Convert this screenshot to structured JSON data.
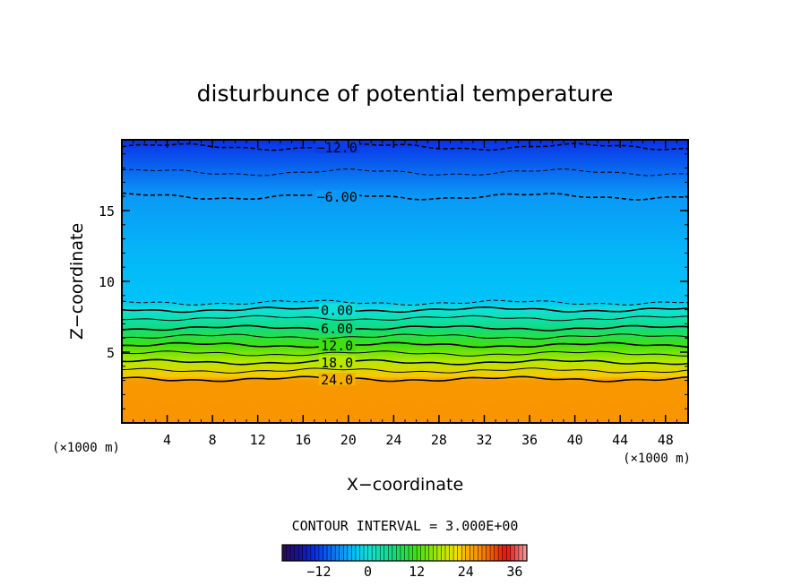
{
  "chart_data": {
    "type": "heatmap",
    "title": "disturbunce of potential temperature",
    "xlabel": "X−coordinate",
    "ylabel": "Z−coordinate",
    "x_unit_left": "(×1000 m)",
    "x_unit_right": "(×1000 m)",
    "xlim": [
      0,
      50
    ],
    "ylim": [
      0,
      20
    ],
    "x_ticks": [
      4,
      8,
      12,
      16,
      20,
      24,
      28,
      32,
      36,
      40,
      44,
      48
    ],
    "y_ticks": [
      5,
      10,
      15
    ],
    "contour_interval_text": "CONTOUR INTERVAL = 3.000E+00",
    "contour_interval": 3,
    "contours": [
      {
        "level": -12,
        "label": "−12.0",
        "z": 19.5,
        "dashed": true,
        "labeled": true
      },
      {
        "level": -9,
        "label": "",
        "z": 17.7,
        "dashed": true,
        "labeled": false
      },
      {
        "level": -6,
        "label": "−6.00",
        "z": 16.0,
        "dashed": true,
        "labeled": true
      },
      {
        "level": -3,
        "label": "",
        "z": 8.5,
        "dashed": true,
        "labeled": false
      },
      {
        "level": 0,
        "label": "0.00",
        "z": 8.0,
        "dashed": false,
        "labeled": true
      },
      {
        "level": 3,
        "label": "",
        "z": 7.4,
        "dashed": false,
        "labeled": false
      },
      {
        "level": 6,
        "label": "6.00",
        "z": 6.7,
        "dashed": false,
        "labeled": true
      },
      {
        "level": 9,
        "label": "",
        "z": 6.1,
        "dashed": false,
        "labeled": false
      },
      {
        "level": 12,
        "label": "12.0",
        "z": 5.5,
        "dashed": false,
        "labeled": true
      },
      {
        "level": 15,
        "label": "",
        "z": 4.9,
        "dashed": false,
        "labeled": false
      },
      {
        "level": 18,
        "label": "18.0",
        "z": 4.3,
        "dashed": false,
        "labeled": true
      },
      {
        "level": 21,
        "label": "",
        "z": 3.7,
        "dashed": false,
        "labeled": false
      },
      {
        "level": 24,
        "label": "24.0",
        "z": 3.1,
        "dashed": false,
        "labeled": true
      }
    ],
    "fill_profile": [
      {
        "z": 0,
        "value": 27
      },
      {
        "z": 3.0,
        "value": 26.5
      },
      {
        "z": 3.3,
        "value": 23
      },
      {
        "z": 4.3,
        "value": 18
      },
      {
        "z": 5.5,
        "value": 12
      },
      {
        "z": 6.7,
        "value": 6
      },
      {
        "z": 8.0,
        "value": 0
      },
      {
        "z": 8.6,
        "value": -3
      },
      {
        "z": 12.0,
        "value": -4
      },
      {
        "z": 16.0,
        "value": -6
      },
      {
        "z": 17.7,
        "value": -9
      },
      {
        "z": 19.5,
        "value": -12
      },
      {
        "z": 20,
        "value": -13
      }
    ],
    "colorbar": {
      "min": -21,
      "max": 39,
      "tick_values": [
        -12,
        0,
        12,
        24,
        36
      ],
      "tick_labels": [
        "−12",
        "0",
        "12",
        "24",
        "36"
      ]
    },
    "colors": {
      "stops": [
        {
          "value": -21,
          "color": "#2a0a52"
        },
        {
          "value": -16,
          "color": "#1515a8"
        },
        {
          "value": -13,
          "color": "#0a2ee8"
        },
        {
          "value": -9,
          "color": "#0a6cf0"
        },
        {
          "value": -5,
          "color": "#0aa8f8"
        },
        {
          "value": -3,
          "color": "#00c4f8"
        },
        {
          "value": 0,
          "color": "#10e0d8"
        },
        {
          "value": 6,
          "color": "#10dc80"
        },
        {
          "value": 12,
          "color": "#40e010"
        },
        {
          "value": 18,
          "color": "#b8e800"
        },
        {
          "value": 22,
          "color": "#f8e000"
        },
        {
          "value": 24,
          "color": "#f8b000"
        },
        {
          "value": 27,
          "color": "#f89400"
        },
        {
          "value": 30,
          "color": "#f06000"
        },
        {
          "value": 34,
          "color": "#e81010"
        },
        {
          "value": 39,
          "color": "#f0a0a0"
        }
      ]
    }
  }
}
